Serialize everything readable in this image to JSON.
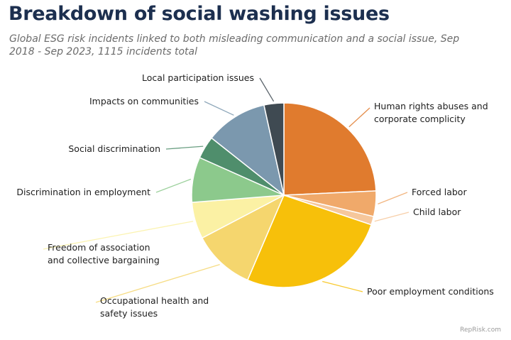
{
  "title": "Breakdown of social washing issues",
  "subtitle": "Global ESG risk incidents linked to both misleading communication and a social issue, Sep 2018 - Sep 2023, 1115 incidents total",
  "source": "RepRisk.com",
  "chart_data": {
    "type": "pie",
    "title": "Breakdown of social washing issues",
    "subtitle": "Global ESG risk incidents linked to both misleading communication and a social issue, Sep 2018 - Sep 2023, 1115 incidents total",
    "unit": "incidents",
    "total": 1115,
    "start": "12 o'clock",
    "direction": "clockwise",
    "slices": [
      {
        "label": "Human rights abuses and corporate complicity",
        "lines": [
          "Human rights abuses and",
          "corporate complicity"
        ],
        "value": 24.5,
        "color": "#e07b2e"
      },
      {
        "label": "Forced labor",
        "lines": [
          "Forced labor"
        ],
        "value": 4.5,
        "color": "#f0a96a"
      },
      {
        "label": "Child labor",
        "lines": [
          "Child labor"
        ],
        "value": 1.5,
        "color": "#f6c79b"
      },
      {
        "label": "Poor employment conditions",
        "lines": [
          "Poor employment conditions"
        ],
        "value": 26.5,
        "color": "#f7c00a"
      },
      {
        "label": "Occupational health and safety issues",
        "lines": [
          "Occupational health and",
          "safety issues"
        ],
        "value": 11.0,
        "color": "#f5d66e"
      },
      {
        "label": "Freedom of association and collective bargaining",
        "lines": [
          "Freedom of association",
          "and collective bargaining"
        ],
        "value": 6.5,
        "color": "#fbf1a4"
      },
      {
        "label": "Discrimination in employment",
        "lines": [
          "Discrimination in employment"
        ],
        "value": 8.0,
        "color": "#8cc98c"
      },
      {
        "label": "Social discrimination",
        "lines": [
          "Social discrimination"
        ],
        "value": 4.0,
        "color": "#4f8e6c"
      },
      {
        "label": "Impacts on communities",
        "lines": [
          "Impacts on communities"
        ],
        "value": 11.0,
        "color": "#7b98ae"
      },
      {
        "label": "Local participation issues",
        "lines": [
          "Local participation issues"
        ],
        "value": 3.5,
        "color": "#3f4a52"
      }
    ]
  }
}
